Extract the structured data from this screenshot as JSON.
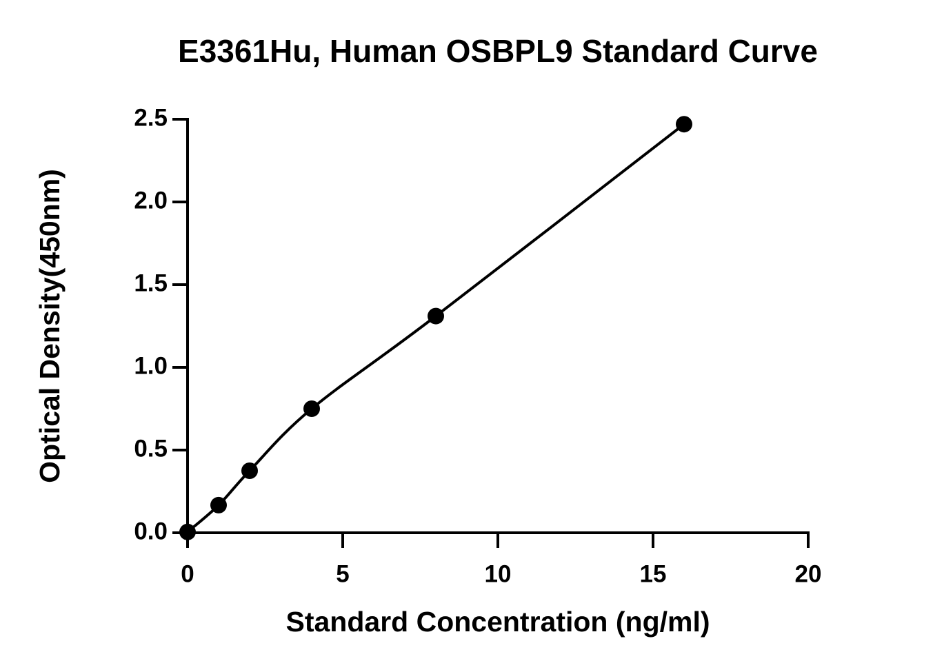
{
  "chart_data": {
    "type": "scatter",
    "title": "E3361Hu, Human OSBPL9 Standard Curve",
    "x_label": "Standard Concentration (ng/ml)",
    "y_label": "Optical Density(450nm)",
    "series": [
      {
        "color": "#000000",
        "x": [
          0,
          1,
          2,
          4,
          8,
          16
        ],
        "values": [
          0.005,
          0.167,
          0.375,
          0.75,
          1.31,
          2.47
        ]
      }
    ],
    "fit_curve": true,
    "xlim": [
      0,
      20
    ],
    "xticks": [
      0,
      5,
      10,
      15,
      20
    ],
    "ylim": [
      0,
      2.5
    ],
    "yticks": [
      {
        "value": 0,
        "label": "0.0"
      },
      0.5,
      {
        "value": 1,
        "label": "1.0"
      },
      1.5,
      {
        "value": 2,
        "label": "2.0"
      },
      2.5
    ]
  }
}
